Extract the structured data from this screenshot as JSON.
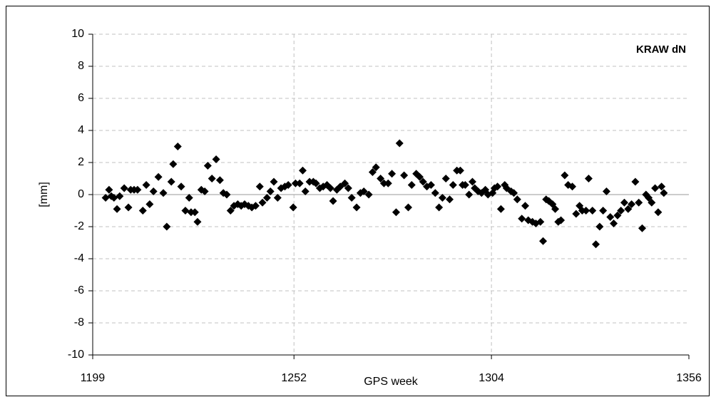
{
  "chart_data": {
    "type": "scatter",
    "title": "KRAW dN",
    "xlabel": "GPS week",
    "ylabel": "[mm]",
    "xlim": [
      1199,
      1356
    ],
    "xticks": [
      1199,
      1252,
      1304,
      1356
    ],
    "ylim": [
      -10,
      10
    ],
    "yticks": [
      -10,
      -8,
      -6,
      -4,
      -2,
      0,
      2,
      4,
      6,
      8,
      10
    ],
    "grid": true,
    "color": "#000000",
    "x": [
      1202.4,
      1203.3,
      1203.9,
      1204.6,
      1205.4,
      1206.1,
      1207.3,
      1208.4,
      1209,
      1209.9,
      1210.8,
      1212.2,
      1213.1,
      1214,
      1215,
      1216.3,
      1217.6,
      1218.5,
      1219.7,
      1220.2,
      1221.4,
      1222.3,
      1223.4,
      1224.4,
      1224.9,
      1225.9,
      1226.6,
      1227.6,
      1228.5,
      1229.3,
      1230.4,
      1231.5,
      1232.5,
      1233.4,
      1234.3,
      1235.3,
      1236.2,
      1237.2,
      1238.1,
      1239,
      1240,
      1240.9,
      1241.9,
      1243,
      1243.7,
      1244.9,
      1245.8,
      1246.7,
      1247.7,
      1248.6,
      1249.6,
      1250.5,
      1251.8,
      1252.4,
      1253.5,
      1254.3,
      1255,
      1256.1,
      1257.1,
      1257.8,
      1258.8,
      1259.7,
      1260.7,
      1261.6,
      1262.3,
      1263.3,
      1264.2,
      1265.4,
      1266.3,
      1267.2,
      1268.5,
      1269.5,
      1270.4,
      1271.7,
      1272.7,
      1273.6,
      1274.8,
      1275.7,
      1276.8,
      1277.8,
      1278.9,
      1279.8,
      1281,
      1282.1,
      1283,
      1284.2,
      1285.1,
      1286,
      1287,
      1288.1,
      1289.2,
      1290.2,
      1291.1,
      1292,
      1293,
      1293.9,
      1294.9,
      1295.8,
      1296.4,
      1297.1,
      1298.1,
      1299,
      1299.6,
      1300.5,
      1301.4,
      1302.4,
      1303.1,
      1304.3,
      1304.8,
      1305.6,
      1306.5,
      1307.5,
      1308,
      1309.2,
      1309.9,
      1310.8,
      1312,
      1312.9,
      1313.7,
      1314.8,
      1315.7,
      1316.9,
      1317.6,
      1318.4,
      1319.1,
      1320.1,
      1320.8,
      1321.6,
      1322.3,
      1323.3,
      1324.2,
      1325.3,
      1326.3,
      1327.2,
      1327.9,
      1328.9,
      1329.6,
      1330.6,
      1331.5,
      1332.5,
      1333.4,
      1334.3,
      1335.3,
      1336.2,
      1337.2,
      1338.1,
      1339,
      1340,
      1340.9,
      1341.9,
      1342.8,
      1343.7,
      1344.7,
      1345.4,
      1346.2,
      1347.1,
      1347.9,
      1348.8,
      1349.4
    ],
    "values": [
      -0.2,
      0.3,
      -0.1,
      -0.2,
      -0.9,
      -0.1,
      0.4,
      -0.8,
      0.3,
      0.3,
      0.3,
      -1.0,
      0.6,
      -0.6,
      0.2,
      1.1,
      0.1,
      -2.0,
      0.8,
      1.9,
      3.0,
      0.5,
      -1.0,
      -0.2,
      -1.1,
      -1.1,
      -1.7,
      0.3,
      0.2,
      1.8,
      1.0,
      2.2,
      0.9,
      0.1,
      0.0,
      -1.0,
      -0.7,
      -0.6,
      -0.7,
      -0.6,
      -0.7,
      -0.8,
      -0.7,
      0.5,
      -0.5,
      -0.2,
      0.2,
      0.8,
      -0.2,
      0.4,
      0.5,
      0.6,
      -0.8,
      0.7,
      0.7,
      1.5,
      0.2,
      0.8,
      0.8,
      0.7,
      0.4,
      0.5,
      0.6,
      0.4,
      -0.4,
      0.3,
      0.5,
      0.7,
      0.4,
      -0.2,
      -0.8,
      0.1,
      0.2,
      0.0,
      1.4,
      1.7,
      1.0,
      0.7,
      0.7,
      1.3,
      -1.1,
      3.2,
      1.2,
      -0.8,
      0.6,
      1.3,
      1.1,
      0.8,
      0.5,
      0.6,
      0.1,
      -0.8,
      -0.2,
      1.0,
      -0.3,
      0.6,
      1.5,
      1.5,
      0.6,
      0.6,
      0.0,
      0.8,
      0.4,
      0.2,
      0.1,
      0.3,
      0.0,
      0.1,
      0.4,
      0.5,
      -0.9,
      0.6,
      0.4,
      0.2,
      0.1,
      -0.3,
      -1.5,
      -0.7,
      -1.6,
      -1.7,
      -1.8,
      -1.7,
      -2.9,
      -0.3,
      -0.4,
      -0.6,
      -0.9,
      -1.7,
      -1.6,
      1.2,
      0.6,
      0.5,
      -1.2,
      -0.7,
      -1.0,
      -1.0,
      1.0,
      -1.0,
      -3.1,
      -2.0,
      -1.0,
      0.2,
      -1.4,
      -1.8,
      -1.3,
      -1.0,
      -0.5,
      -0.9,
      -0.6,
      0.8,
      -0.5,
      -2.1,
      0.0,
      -0.2,
      -0.5,
      0.4,
      -1.1,
      0.5,
      0.1
    ]
  }
}
